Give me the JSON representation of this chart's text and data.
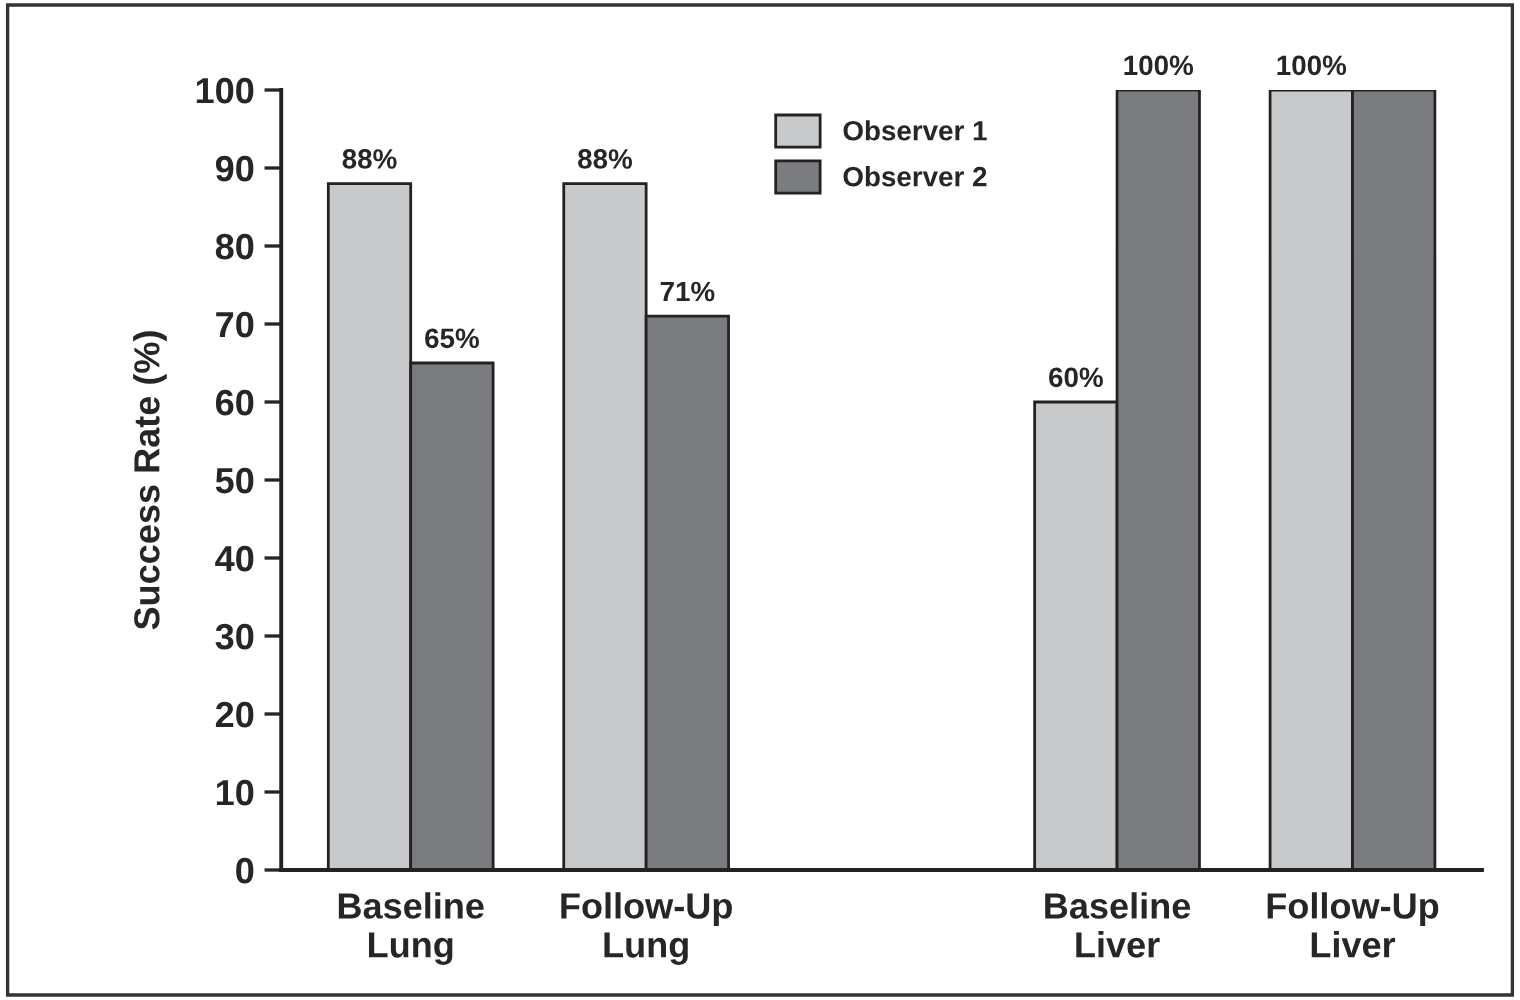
{
  "chart_data": {
    "type": "bar",
    "ylabel": "Success Rate (%)",
    "categories": [
      "Baseline\nLung",
      "Follow-Up\nLung",
      null,
      "Baseline\nLiver",
      "Follow-Up\nLiver"
    ],
    "series": [
      {
        "name": "Observer 1",
        "color": "#c8c9cb",
        "values": [
          88,
          88,
          null,
          60,
          100
        ],
        "value_labels": [
          "88%",
          "88%",
          null,
          "60%",
          "100%"
        ]
      },
      {
        "name": "Observer 2",
        "color": "#7b7c7f",
        "values": [
          65,
          71,
          null,
          100,
          100
        ],
        "value_labels": [
          "65%",
          "71%",
          null,
          "100%",
          null
        ]
      }
    ],
    "ylim": [
      0,
      100
    ],
    "yticks": [
      0,
      10,
      20,
      30,
      40,
      50,
      60,
      70,
      80,
      90,
      100
    ],
    "grid": false,
    "legend": "top"
  }
}
